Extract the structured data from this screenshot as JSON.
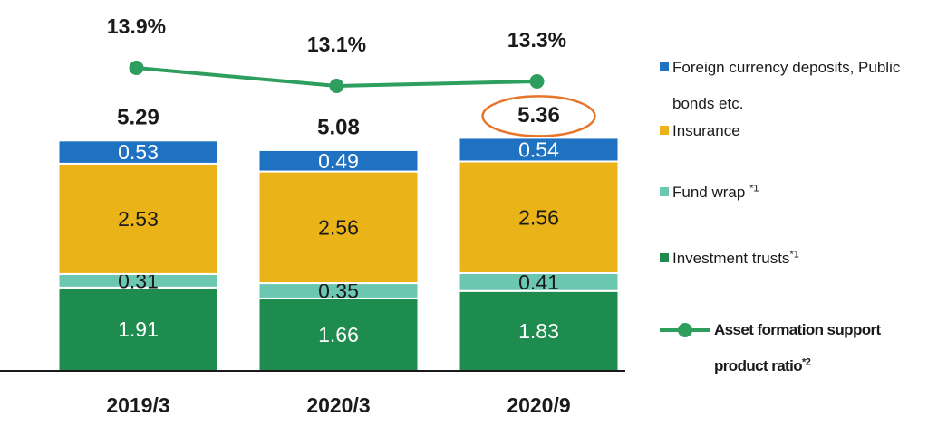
{
  "chart_data": {
    "type": "bar",
    "categories": [
      "2019/3",
      "2020/3",
      "2020/9"
    ],
    "series": [
      {
        "name": "Investment trusts",
        "footnote": "*1",
        "color": "#1e8c4e",
        "label_color": "#ffffff",
        "values": [
          1.91,
          1.66,
          1.83
        ]
      },
      {
        "name": "Fund wrap",
        "footnote": "*1",
        "color": "#6cc7b0",
        "label_color": "#1a1a1a",
        "values": [
          0.31,
          0.35,
          0.41
        ]
      },
      {
        "name": "Insurance",
        "color": "#eab318",
        "label_color": "#1a1a1a",
        "values": [
          2.53,
          2.56,
          2.56
        ]
      },
      {
        "name": "Foreign currency deposits, Public bonds etc.",
        "color": "#1f72c1",
        "label_color": "#ffffff",
        "values": [
          0.53,
          0.49,
          0.54
        ]
      },
      {
        "name": "Asset formation support product ratio",
        "footnote": "*2",
        "type": "line",
        "axis": "y2",
        "color": "#2e9e5e",
        "values": [
          13.9,
          13.1,
          13.3
        ],
        "value_labels": [
          "13.9%",
          "13.1%",
          "13.3%"
        ]
      }
    ],
    "totals": [
      5.29,
      5.08,
      5.36
    ],
    "highlight_index": 2,
    "highlight_color": "#e8742a",
    "ylim": [
      0,
      8.5
    ],
    "y2lim": [
      0.5,
      16.9
    ]
  }
}
